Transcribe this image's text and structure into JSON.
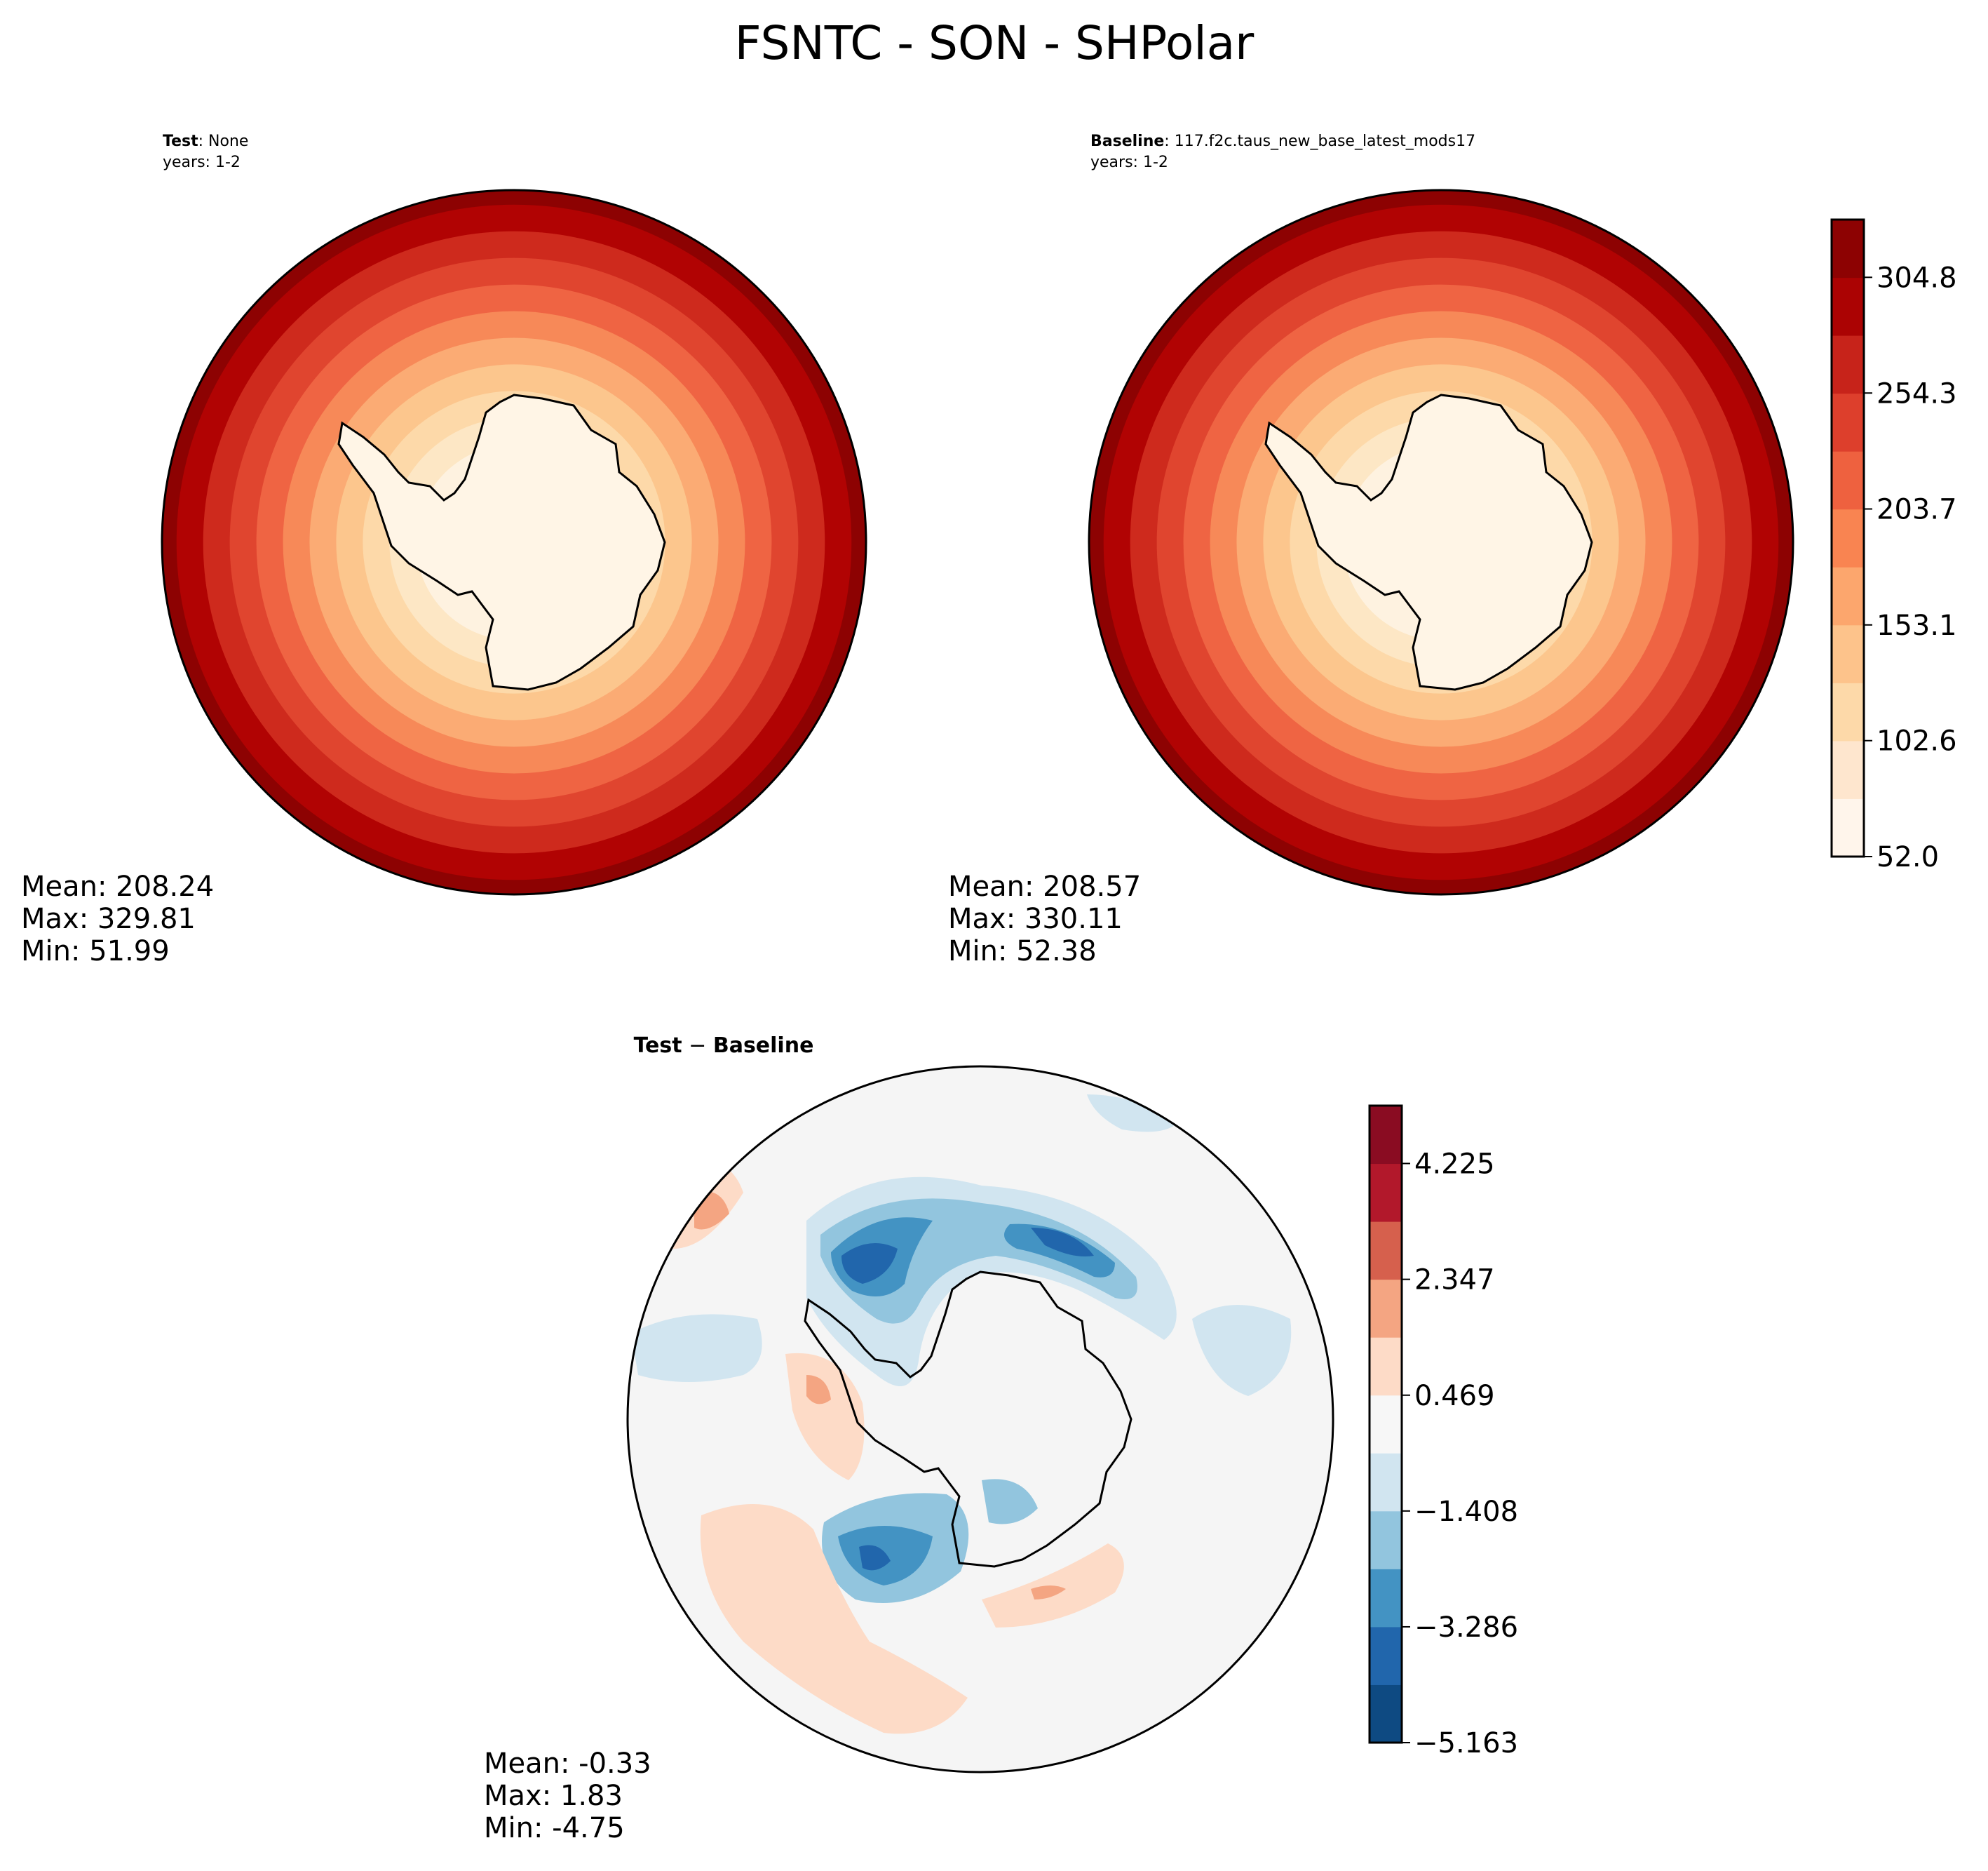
{
  "title": "FSNTC - SON - SHPolar",
  "panels": {
    "test": {
      "label_bold": "Test",
      "label_rest": ": None",
      "years": "years: 1-2",
      "mean": "Mean: 208.24",
      "max": "Max: 329.81",
      "min": "Min: 51.99"
    },
    "baseline": {
      "label_bold": "Baseline",
      "label_rest": ": 117.f2c.taus_new_base_latest_mods17",
      "years": "years: 1-2",
      "mean": "Mean: 208.57",
      "max": "Max: 330.11",
      "min": "Min: 52.38"
    },
    "diff": {
      "title_a": "Test",
      "title_op": " − ",
      "title_b": "Baseline",
      "mean": "Mean: -0.33",
      "max": "Max:  1.83",
      "min": "Min: -4.75"
    }
  },
  "chart_data": [
    {
      "type": "heatmap",
      "projection": "south-polar-stereographic",
      "panel": "Test",
      "variable": "FSNTC",
      "season": "SON",
      "region": "SHPolar",
      "mean": 208.24,
      "max": 329.81,
      "min": 51.99,
      "field_rings": [
        {
          "value": 315,
          "color": "#8d0202"
        },
        {
          "value": 290,
          "color": "#b10303"
        },
        {
          "value": 265,
          "color": "#ce2a1d"
        },
        {
          "value": 240,
          "color": "#e0452f"
        },
        {
          "value": 215,
          "color": "#ef6443"
        },
        {
          "value": 190,
          "color": "#f78958"
        },
        {
          "value": 165,
          "color": "#fbab74"
        },
        {
          "value": 140,
          "color": "#fcc68d"
        },
        {
          "value": 115,
          "color": "#fdd9a9"
        },
        {
          "value": 90,
          "color": "#fde7c5"
        },
        {
          "value": 65,
          "color": "#fef2e0"
        }
      ]
    },
    {
      "type": "heatmap",
      "projection": "south-polar-stereographic",
      "panel": "Baseline",
      "variable": "FSNTC",
      "season": "SON",
      "region": "SHPolar",
      "mean": 208.57,
      "max": 330.11,
      "min": 52.38,
      "colorbar": {
        "ticks": [
          "304.8",
          "254.3",
          "203.7",
          "153.1",
          "102.6",
          "52.0"
        ],
        "tick_values": [
          304.8,
          254.3,
          203.7,
          153.1,
          102.6,
          52.0
        ],
        "range": [
          52.0,
          330.0
        ],
        "levels": 11,
        "colors": [
          "#fff5eb",
          "#fee6ce",
          "#fdd9a9",
          "#fdc38b",
          "#fca66d",
          "#f98451",
          "#ee613f",
          "#dd3f2c",
          "#c7231a",
          "#ab0303",
          "#8d0202"
        ]
      }
    },
    {
      "type": "heatmap",
      "projection": "south-polar-stereographic",
      "panel": "Test - Baseline",
      "mean": -0.33,
      "max": 1.83,
      "min": -4.75,
      "colorbar": {
        "ticks": [
          "4.225",
          "2.347",
          "0.469",
          "−1.408",
          "−3.286",
          "−5.163"
        ],
        "tick_values": [
          4.225,
          2.347,
          0.469,
          -1.408,
          -3.286,
          -5.163
        ],
        "range": [
          -5.163,
          5.163
        ],
        "levels": 11,
        "colors": [
          "#0e4a82",
          "#2166ac",
          "#4393c3",
          "#92c5de",
          "#d1e5f0",
          "#f7f7f7",
          "#fddbc7",
          "#f4a582",
          "#d6604d",
          "#b2182b",
          "#8a0c22"
        ]
      }
    }
  ]
}
